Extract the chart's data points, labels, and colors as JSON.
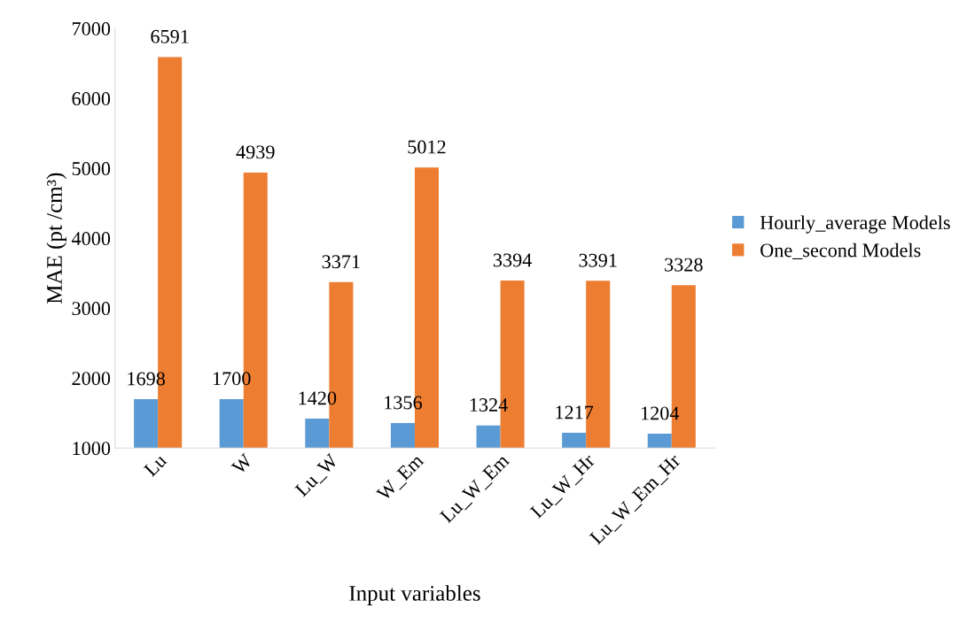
{
  "chart_data": {
    "type": "bar",
    "xlabel": "Input variables",
    "ylabel": "MAE (pt /cm³)",
    "categories": [
      "Lu",
      "W",
      "Lu_W",
      "W_Em",
      "Lu_W_Em",
      "Lu_W_Hr",
      "Lu_W_Em_Hr"
    ],
    "series": [
      {
        "name": "Hourly_average Models",
        "color": "#5b9bd5",
        "values": [
          1698,
          1700,
          1420,
          1356,
          1324,
          1217,
          1204
        ]
      },
      {
        "name": "One_second Models",
        "color": "#ed7d31",
        "values": [
          6591,
          4939,
          3371,
          5012,
          3394,
          3391,
          3328
        ]
      }
    ],
    "ylim": [
      1000,
      7000
    ],
    "yticks": [
      1000,
      2000,
      3000,
      4000,
      5000,
      6000,
      7000
    ],
    "data_labels": true,
    "grid": false,
    "legend": "right"
  }
}
